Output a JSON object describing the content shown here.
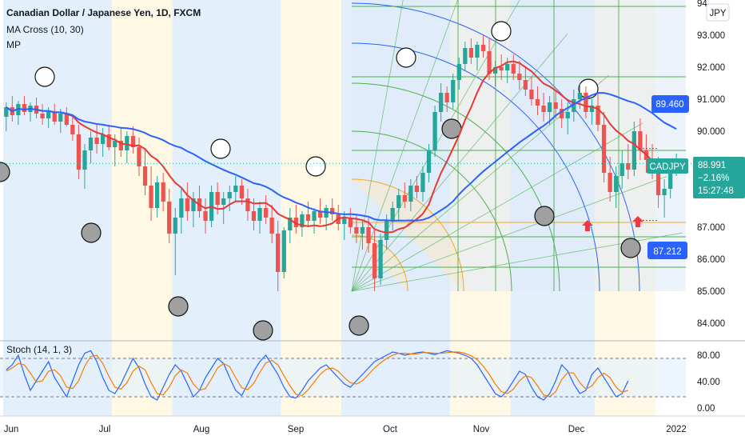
{
  "header": {
    "title": "Canadian Dollar / Japanese Yen, 1D, FXCM",
    "indicator_ma": "MA Cross (10, 30)",
    "indicator_mp": "MP"
  },
  "currency_button": "JPY",
  "colors": {
    "up": "#26a69a",
    "down": "#ef5350",
    "ma_fast": "#e53935",
    "ma_slow": "#2962ff",
    "stoch_k": "#2962ff",
    "stoch_d": "#f57c00",
    "band_blue": "#e3f0fc",
    "band_yellow": "#fff8e5",
    "gann_orange": "#f5a623",
    "gann_green": "#4caf50",
    "gann_blue": "#2962ff",
    "badge_blue": "#2962ff",
    "badge_green": "#26a69a",
    "arrow_red": "#f23645"
  },
  "price_badges": {
    "upper": "89.460",
    "lower": "87.212",
    "symbol": "CADJPY",
    "last": "88.991",
    "change": "−2.16%",
    "countdown": "15:27:48"
  },
  "stoch_pane": {
    "label": "Stoch (14, 1, 3)",
    "ticks": [
      "80.00",
      "40.00",
      "0.00"
    ]
  },
  "chart_data": {
    "type": "candlestick",
    "title": "Canadian Dollar / Japanese Yen, 1D, FXCM",
    "y_ticks": [
      "94",
      "93.000",
      "92.000",
      "91.000",
      "90.000",
      "87.000",
      "86.000",
      "85.000",
      "84.000"
    ],
    "ylim": [
      83.6,
      94.1
    ],
    "x_ticks": [
      "Jun",
      "Jul",
      "Aug",
      "Sep",
      "Oct",
      "Nov",
      "Dec",
      "2022"
    ],
    "price_range_lines": {
      "upper": 89.46,
      "lower": 87.212
    },
    "last_price": 88.991,
    "candles": [
      {
        "o": 90.45,
        "h": 90.9,
        "l": 90.0,
        "c": 90.75
      },
      {
        "o": 90.75,
        "h": 91.1,
        "l": 90.3,
        "c": 90.5
      },
      {
        "o": 90.5,
        "h": 90.95,
        "l": 90.2,
        "c": 90.85
      },
      {
        "o": 90.85,
        "h": 91.1,
        "l": 90.5,
        "c": 90.6
      },
      {
        "o": 90.6,
        "h": 90.9,
        "l": 90.3,
        "c": 90.8
      },
      {
        "o": 90.8,
        "h": 91.05,
        "l": 90.4,
        "c": 90.55
      },
      {
        "o": 90.55,
        "h": 90.85,
        "l": 90.2,
        "c": 90.4
      },
      {
        "o": 90.4,
        "h": 90.75,
        "l": 90.1,
        "c": 90.6
      },
      {
        "o": 90.6,
        "h": 90.85,
        "l": 90.2,
        "c": 90.3
      },
      {
        "o": 90.3,
        "h": 90.7,
        "l": 89.95,
        "c": 90.55
      },
      {
        "o": 90.55,
        "h": 90.75,
        "l": 90.15,
        "c": 90.2
      },
      {
        "o": 90.2,
        "h": 90.5,
        "l": 89.7,
        "c": 89.9
      },
      {
        "o": 89.9,
        "h": 90.2,
        "l": 88.5,
        "c": 88.8
      },
      {
        "o": 88.8,
        "h": 89.6,
        "l": 88.2,
        "c": 89.4
      },
      {
        "o": 89.4,
        "h": 90.0,
        "l": 89.0,
        "c": 89.8
      },
      {
        "o": 89.8,
        "h": 90.2,
        "l": 89.3,
        "c": 89.6
      },
      {
        "o": 89.6,
        "h": 90.1,
        "l": 89.2,
        "c": 89.9
      },
      {
        "o": 89.9,
        "h": 90.2,
        "l": 89.4,
        "c": 89.5
      },
      {
        "o": 89.5,
        "h": 89.9,
        "l": 88.9,
        "c": 89.7
      },
      {
        "o": 89.7,
        "h": 90.1,
        "l": 89.2,
        "c": 89.4
      },
      {
        "o": 89.4,
        "h": 90.0,
        "l": 89.0,
        "c": 89.85
      },
      {
        "o": 89.85,
        "h": 90.15,
        "l": 89.3,
        "c": 89.5
      },
      {
        "o": 89.5,
        "h": 89.8,
        "l": 88.6,
        "c": 88.9
      },
      {
        "o": 88.9,
        "h": 89.4,
        "l": 88.0,
        "c": 88.3
      },
      {
        "o": 88.3,
        "h": 88.9,
        "l": 87.2,
        "c": 87.6
      },
      {
        "o": 87.6,
        "h": 88.6,
        "l": 87.3,
        "c": 88.4
      },
      {
        "o": 88.4,
        "h": 88.7,
        "l": 87.5,
        "c": 87.8
      },
      {
        "o": 87.8,
        "h": 88.2,
        "l": 86.5,
        "c": 86.8
      },
      {
        "o": 86.8,
        "h": 87.6,
        "l": 85.5,
        "c": 87.3
      },
      {
        "o": 87.3,
        "h": 88.2,
        "l": 86.8,
        "c": 87.9
      },
      {
        "o": 87.9,
        "h": 88.4,
        "l": 87.2,
        "c": 87.5
      },
      {
        "o": 87.5,
        "h": 88.1,
        "l": 87.0,
        "c": 87.9
      },
      {
        "o": 87.9,
        "h": 88.3,
        "l": 87.3,
        "c": 87.5
      },
      {
        "o": 87.5,
        "h": 87.9,
        "l": 86.8,
        "c": 87.2
      },
      {
        "o": 87.2,
        "h": 88.3,
        "l": 87.0,
        "c": 88.1
      },
      {
        "o": 88.1,
        "h": 88.4,
        "l": 87.4,
        "c": 87.7
      },
      {
        "o": 87.7,
        "h": 88.1,
        "l": 87.1,
        "c": 87.9
      },
      {
        "o": 87.9,
        "h": 88.3,
        "l": 87.5,
        "c": 88.1
      },
      {
        "o": 88.1,
        "h": 88.6,
        "l": 87.8,
        "c": 88.3
      },
      {
        "o": 88.3,
        "h": 88.5,
        "l": 87.7,
        "c": 87.9
      },
      {
        "o": 87.9,
        "h": 88.2,
        "l": 87.2,
        "c": 87.5
      },
      {
        "o": 87.5,
        "h": 87.9,
        "l": 86.9,
        "c": 87.2
      },
      {
        "o": 87.2,
        "h": 87.8,
        "l": 86.8,
        "c": 87.6
      },
      {
        "o": 87.6,
        "h": 88.0,
        "l": 87.1,
        "c": 87.3
      },
      {
        "o": 87.3,
        "h": 87.7,
        "l": 86.5,
        "c": 86.8
      },
      {
        "o": 86.8,
        "h": 87.2,
        "l": 85.0,
        "c": 85.6
      },
      {
        "o": 85.6,
        "h": 87.0,
        "l": 85.4,
        "c": 86.9
      },
      {
        "o": 86.9,
        "h": 87.6,
        "l": 86.5,
        "c": 87.3
      },
      {
        "o": 87.3,
        "h": 87.7,
        "l": 86.8,
        "c": 87.0
      },
      {
        "o": 87.0,
        "h": 87.5,
        "l": 86.7,
        "c": 87.4
      },
      {
        "o": 87.4,
        "h": 87.8,
        "l": 87.0,
        "c": 87.2
      },
      {
        "o": 87.2,
        "h": 87.6,
        "l": 86.8,
        "c": 87.5
      },
      {
        "o": 87.5,
        "h": 87.9,
        "l": 87.1,
        "c": 87.3
      },
      {
        "o": 87.3,
        "h": 87.7,
        "l": 86.9,
        "c": 87.6
      },
      {
        "o": 87.6,
        "h": 87.9,
        "l": 87.2,
        "c": 87.4
      },
      {
        "o": 87.4,
        "h": 87.7,
        "l": 86.9,
        "c": 87.1
      },
      {
        "o": 87.1,
        "h": 87.5,
        "l": 86.6,
        "c": 87.3
      },
      {
        "o": 87.3,
        "h": 87.6,
        "l": 86.8,
        "c": 87.0
      },
      {
        "o": 87.0,
        "h": 87.4,
        "l": 86.5,
        "c": 86.8
      },
      {
        "o": 86.8,
        "h": 87.2,
        "l": 86.3,
        "c": 87.0
      },
      {
        "o": 87.0,
        "h": 87.3,
        "l": 86.2,
        "c": 86.5
      },
      {
        "o": 86.5,
        "h": 86.9,
        "l": 85.0,
        "c": 85.4
      },
      {
        "o": 85.4,
        "h": 86.8,
        "l": 85.2,
        "c": 86.6
      },
      {
        "o": 86.6,
        "h": 87.4,
        "l": 86.3,
        "c": 87.2
      },
      {
        "o": 87.2,
        "h": 87.8,
        "l": 86.9,
        "c": 87.6
      },
      {
        "o": 87.6,
        "h": 88.2,
        "l": 87.2,
        "c": 88.0
      },
      {
        "o": 88.0,
        "h": 88.4,
        "l": 87.6,
        "c": 87.8
      },
      {
        "o": 87.8,
        "h": 88.5,
        "l": 87.5,
        "c": 88.3
      },
      {
        "o": 88.3,
        "h": 88.6,
        "l": 87.9,
        "c": 88.1
      },
      {
        "o": 88.1,
        "h": 88.9,
        "l": 87.8,
        "c": 88.7
      },
      {
        "o": 88.7,
        "h": 89.6,
        "l": 88.4,
        "c": 89.4
      },
      {
        "o": 89.4,
        "h": 90.8,
        "l": 89.2,
        "c": 90.6
      },
      {
        "o": 90.6,
        "h": 91.5,
        "l": 90.3,
        "c": 91.2
      },
      {
        "o": 91.2,
        "h": 91.4,
        "l": 90.6,
        "c": 90.9
      },
      {
        "o": 90.9,
        "h": 91.8,
        "l": 90.7,
        "c": 91.6
      },
      {
        "o": 91.6,
        "h": 92.3,
        "l": 91.3,
        "c": 92.1
      },
      {
        "o": 92.1,
        "h": 92.8,
        "l": 91.9,
        "c": 92.6
      },
      {
        "o": 92.6,
        "h": 92.9,
        "l": 92.1,
        "c": 92.3
      },
      {
        "o": 92.3,
        "h": 92.8,
        "l": 91.9,
        "c": 92.7
      },
      {
        "o": 92.7,
        "h": 93.0,
        "l": 92.3,
        "c": 92.5
      },
      {
        "o": 92.5,
        "h": 92.9,
        "l": 91.6,
        "c": 91.8
      },
      {
        "o": 91.8,
        "h": 92.2,
        "l": 91.4,
        "c": 92.0
      },
      {
        "o": 92.0,
        "h": 92.4,
        "l": 91.6,
        "c": 91.9
      },
      {
        "o": 91.9,
        "h": 92.3,
        "l": 91.5,
        "c": 92.1
      },
      {
        "o": 92.1,
        "h": 92.4,
        "l": 91.6,
        "c": 91.8
      },
      {
        "o": 91.8,
        "h": 92.2,
        "l": 91.3,
        "c": 91.6
      },
      {
        "o": 91.6,
        "h": 92.0,
        "l": 91.1,
        "c": 91.3
      },
      {
        "o": 91.3,
        "h": 91.7,
        "l": 90.8,
        "c": 91.0
      },
      {
        "o": 91.0,
        "h": 91.4,
        "l": 90.5,
        "c": 90.8
      },
      {
        "o": 90.8,
        "h": 91.2,
        "l": 90.3,
        "c": 90.6
      },
      {
        "o": 90.6,
        "h": 91.1,
        "l": 90.2,
        "c": 90.9
      },
      {
        "o": 90.9,
        "h": 91.3,
        "l": 90.4,
        "c": 90.7
      },
      {
        "o": 90.7,
        "h": 91.0,
        "l": 90.1,
        "c": 90.4
      },
      {
        "o": 90.4,
        "h": 90.9,
        "l": 89.9,
        "c": 90.6
      },
      {
        "o": 90.6,
        "h": 91.3,
        "l": 90.3,
        "c": 91.0
      },
      {
        "o": 91.0,
        "h": 91.5,
        "l": 90.7,
        "c": 91.2
      },
      {
        "o": 91.2,
        "h": 91.4,
        "l": 90.4,
        "c": 90.6
      },
      {
        "o": 90.6,
        "h": 91.0,
        "l": 90.2,
        "c": 90.8
      },
      {
        "o": 90.8,
        "h": 91.2,
        "l": 90.0,
        "c": 90.2
      },
      {
        "o": 90.2,
        "h": 90.6,
        "l": 88.4,
        "c": 88.7
      },
      {
        "o": 88.7,
        "h": 89.2,
        "l": 87.8,
        "c": 88.1
      },
      {
        "o": 88.1,
        "h": 88.9,
        "l": 87.6,
        "c": 88.6
      },
      {
        "o": 88.6,
        "h": 89.4,
        "l": 88.2,
        "c": 89.0
      },
      {
        "o": 89.0,
        "h": 89.6,
        "l": 88.5,
        "c": 88.8
      },
      {
        "o": 88.8,
        "h": 90.3,
        "l": 88.6,
        "c": 90.0
      },
      {
        "o": 90.0,
        "h": 90.4,
        "l": 89.1,
        "c": 89.4
      },
      {
        "o": 89.4,
        "h": 89.9,
        "l": 88.7,
        "c": 89.1
      },
      {
        "o": 89.1,
        "h": 89.6,
        "l": 88.5,
        "c": 88.8
      },
      {
        "o": 88.8,
        "h": 89.2,
        "l": 87.6,
        "c": 88.0
      },
      {
        "o": 88.0,
        "h": 88.5,
        "l": 87.3,
        "c": 88.2
      },
      {
        "o": 88.2,
        "h": 89.1,
        "l": 87.9,
        "c": 88.9
      },
      {
        "o": 88.9,
        "h": 89.3,
        "l": 88.6,
        "c": 88.99
      }
    ],
    "stoch_k": [
      62,
      70,
      85,
      55,
      30,
      45,
      60,
      75,
      50,
      35,
      20,
      45,
      70,
      88,
      92,
      75,
      50,
      30,
      25,
      40,
      60,
      80,
      65,
      40,
      20,
      15,
      35,
      55,
      70,
      60,
      40,
      20,
      30,
      50,
      65,
      80,
      72,
      50,
      30,
      22,
      40,
      60,
      75,
      85,
      70,
      55,
      35,
      20,
      18,
      30,
      45,
      55,
      65,
      70,
      60,
      50,
      40,
      35,
      45,
      55,
      65,
      75,
      80,
      85,
      90,
      88,
      85,
      87,
      89,
      90,
      88,
      86,
      89,
      92,
      90,
      88,
      85,
      80,
      70,
      55,
      40,
      25,
      20,
      30,
      45,
      60,
      55,
      35,
      20,
      15,
      25,
      45,
      70,
      60,
      40,
      25,
      30,
      55,
      65,
      50,
      35,
      20,
      25,
      45
    ],
    "stoch_d": [
      60,
      65,
      72,
      70,
      57,
      43,
      45,
      60,
      62,
      53,
      35,
      33,
      45,
      68,
      83,
      85,
      72,
      52,
      35,
      32,
      42,
      60,
      68,
      62,
      42,
      25,
      23,
      35,
      53,
      62,
      57,
      40,
      30,
      33,
      48,
      65,
      72,
      67,
      50,
      34,
      31,
      41,
      58,
      73,
      77,
      70,
      53,
      37,
      24,
      22,
      31,
      43,
      55,
      63,
      65,
      60,
      50,
      42,
      40,
      45,
      55,
      65,
      73,
      80,
      85,
      88,
      88,
      87,
      87,
      89,
      89,
      88,
      88,
      89,
      90,
      90,
      88,
      84,
      78,
      68,
      55,
      40,
      28,
      25,
      32,
      45,
      53,
      50,
      37,
      23,
      20,
      28,
      47,
      58,
      57,
      42,
      32,
      37,
      50,
      57,
      50,
      35,
      27,
      30
    ]
  }
}
